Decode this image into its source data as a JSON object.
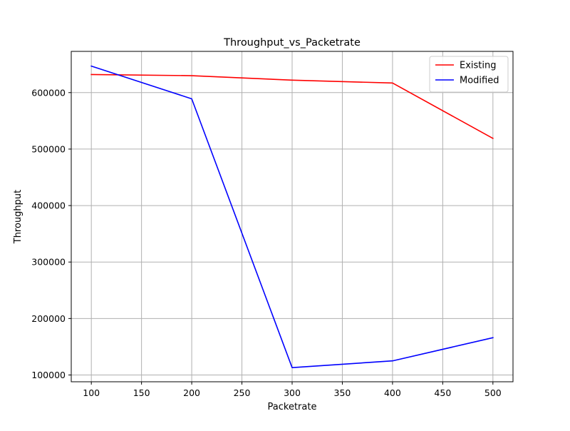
{
  "chart_data": {
    "type": "line",
    "title": "Throughput_vs_Packetrate",
    "xlabel": "Packetrate",
    "ylabel": "Throughput",
    "x": [
      100,
      200,
      300,
      400,
      500
    ],
    "xlim": [
      80,
      520
    ],
    "ylim": [
      88000,
      673000
    ],
    "xticks": [
      100,
      150,
      200,
      250,
      300,
      350,
      400,
      450,
      500
    ],
    "yticks": [
      100000,
      200000,
      300000,
      400000,
      500000,
      600000
    ],
    "grid": true,
    "legend_position": "top-right",
    "series": [
      {
        "name": "Existing",
        "color": "#ff0000",
        "values": [
          632000,
          630000,
          622000,
          617000,
          519000
        ]
      },
      {
        "name": "Modified",
        "color": "#0000ff",
        "values": [
          647000,
          589000,
          113000,
          125000,
          166000
        ]
      }
    ]
  }
}
